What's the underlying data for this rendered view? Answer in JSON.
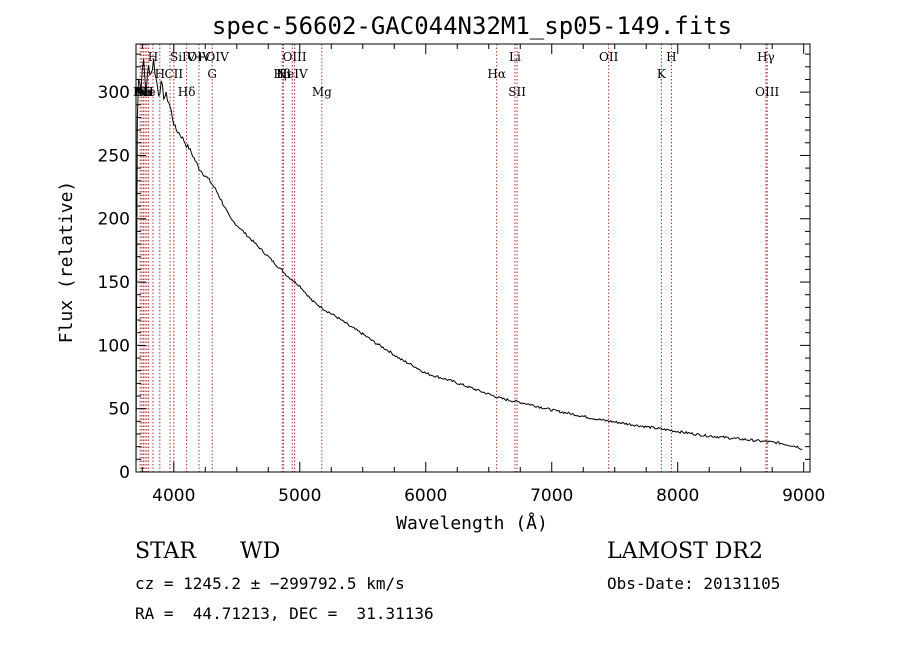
{
  "chart_data": {
    "type": "line",
    "title": "spec-56602-GAC044N32M1_sp05-149.fits",
    "xlabel": "Wavelength (Å)",
    "ylabel": "Flux (relative)",
    "xlim": [
      3700,
      9050
    ],
    "ylim": [
      0,
      338
    ],
    "xticks": [
      4000,
      5000,
      6000,
      7000,
      8000,
      9000
    ],
    "yticks": [
      0,
      50,
      100,
      150,
      200,
      250,
      300
    ],
    "grid": false,
    "legend": "none",
    "line_color": "#000000",
    "marker_color": "#b03030",
    "series": [
      {
        "x": [
          3700,
          3710,
          3720,
          3740,
          3760,
          3780,
          3800,
          3820,
          3840,
          3860,
          3880,
          3900,
          3920,
          3940,
          3960,
          3980,
          4000,
          4020,
          4040,
          4060,
          4080,
          4100,
          4120,
          4150,
          4200,
          4250,
          4300,
          4350,
          4400,
          4450,
          4500,
          4600,
          4700,
          4800,
          4900,
          5000,
          5100,
          5200,
          5300,
          5400,
          5500,
          5600,
          5700,
          5800,
          5900,
          6000,
          6200,
          6400,
          6600,
          6800,
          7000,
          7200,
          7400,
          7600,
          7800,
          8000,
          8200,
          8400,
          8600,
          8800,
          8950,
          8990
        ],
        "y": [
          0,
          280,
          310,
          305,
          325,
          300,
          320,
          315,
          325,
          310,
          300,
          305,
          298,
          296,
          292,
          285,
          275,
          270,
          268,
          265,
          262,
          258,
          256,
          250,
          240,
          234,
          228,
          220,
          210,
          200,
          195,
          185,
          175,
          165,
          155,
          147,
          135,
          128,
          122,
          115,
          109,
          102,
          96,
          89,
          84,
          78,
          72,
          65,
          58,
          54,
          49,
          45,
          41,
          38,
          35,
          32,
          29,
          27,
          25,
          23,
          20,
          18
        ]
      }
    ],
    "lines": [
      {
        "label": "Ni",
        "x": 3733,
        "row": 3
      },
      {
        "label": "Ni",
        "x": 3746,
        "row": 3
      },
      {
        "label": "Ni",
        "x": 3759,
        "row": 3
      },
      {
        "label": "Ni",
        "x": 3772,
        "row": 3
      },
      {
        "label": "He",
        "x": 3786,
        "row": 3
      },
      {
        "label": "H",
        "x": 3800,
        "row": 3
      },
      {
        "label": "H",
        "x": 3835,
        "row": 1
      },
      {
        "label": "H",
        "x": 3889,
        "row": 2
      },
      {
        "label": "SiIV+OIV",
        "x": 3970,
        "row": 1,
        "anchor": "start"
      },
      {
        "label": "CII",
        "x": 4000,
        "row": 2,
        "anchor": "middle"
      },
      {
        "label": "Hδ",
        "x": 4102,
        "row": 3
      },
      {
        "label": "OIV",
        "x": 4200,
        "row": 1
      },
      {
        "label": "G",
        "x": 4305,
        "row": 2
      },
      {
        "label": "OIII",
        "x": 4959,
        "row": 1
      },
      {
        "label": "Hβ",
        "x": 4861,
        "row": 2
      },
      {
        "label": "Ni",
        "x": 4870,
        "row": 2
      },
      {
        "label": "HeIV",
        "x": 4940,
        "row": 2
      },
      {
        "label": "Mg",
        "x": 5175,
        "row": 3
      },
      {
        "label": "Hα",
        "x": 6563,
        "row": 2
      },
      {
        "label": "Li",
        "x": 6708,
        "row": 1
      },
      {
        "label": "SII",
        "x": 6725,
        "row": 3
      },
      {
        "label": "OII",
        "x": 7452,
        "row": 1
      },
      {
        "label": "H",
        "x": 7950,
        "row": 1
      },
      {
        "label": "K",
        "x": 7870,
        "row": 2
      },
      {
        "label": "Hγ",
        "x": 8700,
        "row": 1
      },
      {
        "label": "OIII",
        "x": 8710,
        "row": 3
      }
    ]
  },
  "info": {
    "object_class": "STAR",
    "subclass": "WD",
    "survey": "LAMOST DR2",
    "cz": "cz = 1245.2 ± −299792.5 km/s",
    "obs_date": "Obs-Date: 20131105",
    "coords": "RA =  44.71213, DEC =  31.31136"
  }
}
